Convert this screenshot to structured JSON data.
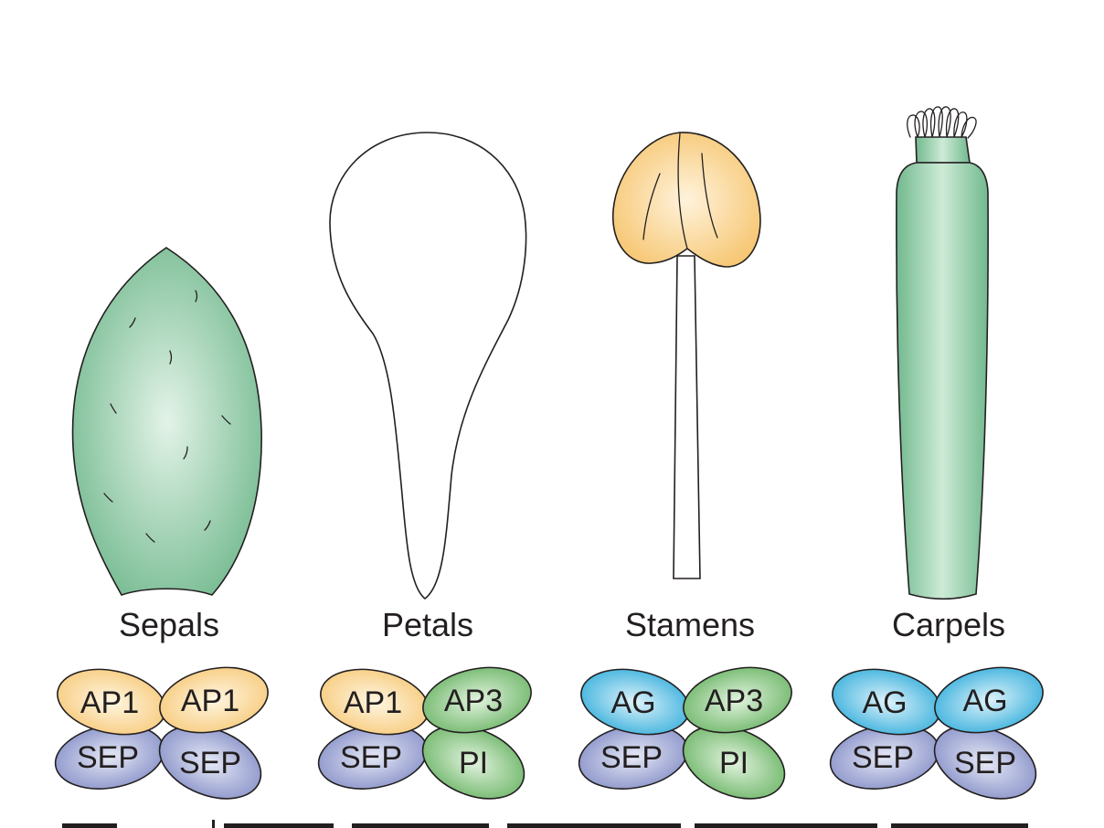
{
  "organs": [
    {
      "label": "Sepals"
    },
    {
      "label": "Petals"
    },
    {
      "label": "Stamens"
    },
    {
      "label": "Carpels"
    }
  ],
  "complexes": [
    {
      "organ": "Sepals",
      "proteins": [
        "AP1",
        "AP1",
        "SEP",
        "SEP"
      ],
      "colors": [
        "#f7c978",
        "#f7c978",
        "#8c95c9",
        "#8c95c9"
      ]
    },
    {
      "organ": "Petals",
      "proteins": [
        "AP1",
        "AP3",
        "SEP",
        "PI"
      ],
      "colors": [
        "#f7c978",
        "#72b86c",
        "#8c95c9",
        "#72b86c"
      ]
    },
    {
      "organ": "Stamens",
      "proteins": [
        "AG",
        "AP3",
        "SEP",
        "PI"
      ],
      "colors": [
        "#3fb3dc",
        "#72b86c",
        "#8c95c9",
        "#72b86c"
      ]
    },
    {
      "organ": "Carpels",
      "proteins": [
        "AG",
        "AG",
        "SEP",
        "SEP"
      ],
      "colors": [
        "#3fb3dc",
        "#3fb3dc",
        "#8c95c9",
        "#8c95c9"
      ]
    }
  ],
  "colors": {
    "sepal_green": "#7cc497",
    "anther_yellow": "#f7c978",
    "carpel_green": "#7cc497"
  }
}
